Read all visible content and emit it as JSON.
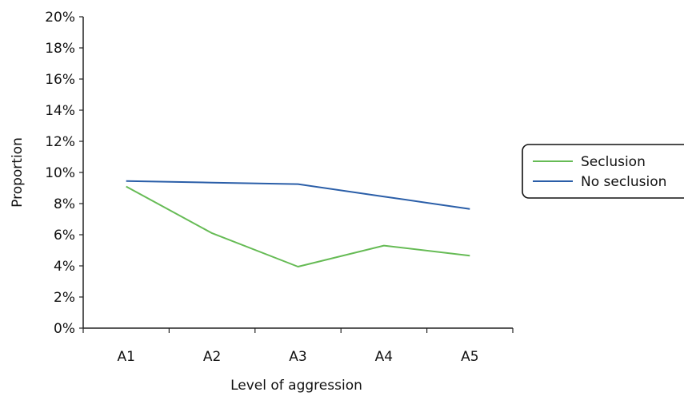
{
  "chart_data": {
    "type": "line",
    "categories": [
      "A1",
      "A2",
      "A3",
      "A4",
      "A5"
    ],
    "series": [
      {
        "name": "Seclusion",
        "values": [
          9.1,
          6.1,
          3.95,
          5.3,
          4.65
        ],
        "color": "#66bb55"
      },
      {
        "name": "No seclusion",
        "values": [
          9.45,
          9.35,
          9.25,
          8.45,
          7.65
        ],
        "color": "#2a5ea8"
      }
    ],
    "title": "",
    "xlabel": "Level of aggression",
    "ylabel": "Proportion",
    "ylim": [
      0,
      20
    ],
    "yticks": [
      "0%",
      "2%",
      "4%",
      "6%",
      "8%",
      "10%",
      "12%",
      "14%",
      "16%",
      "18%",
      "20%"
    ],
    "grid": false,
    "legend_position": "right"
  }
}
